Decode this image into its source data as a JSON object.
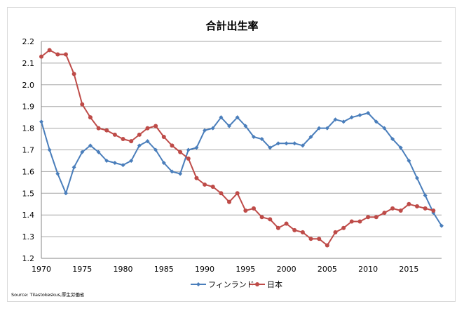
{
  "chart_data": {
    "type": "line",
    "title": "合計出生率",
    "xlabel": "",
    "ylabel": "",
    "xlim": [
      1970,
      2019
    ],
    "ylim": [
      1.2,
      2.2
    ],
    "x_ticks": [
      "1970",
      "1975",
      "1980",
      "1985",
      "1990",
      "1995",
      "2000",
      "2005",
      "2010",
      "2015"
    ],
    "y_ticks": [
      "1.2",
      "1.3",
      "1.4",
      "1.5",
      "1.6",
      "1.7",
      "1.8",
      "1.9",
      "2.0",
      "2.1",
      "2.2"
    ],
    "grid": true,
    "legend_position": "bottom",
    "series": [
      {
        "name": "フィンランド",
        "color": "#4a7ebb",
        "marker": "diamond",
        "x": [
          1970,
          1971,
          1972,
          1973,
          1974,
          1975,
          1976,
          1977,
          1978,
          1979,
          1980,
          1981,
          1982,
          1983,
          1984,
          1985,
          1986,
          1987,
          1988,
          1989,
          1990,
          1991,
          1992,
          1993,
          1994,
          1995,
          1996,
          1997,
          1998,
          1999,
          2000,
          2001,
          2002,
          2003,
          2004,
          2005,
          2006,
          2007,
          2008,
          2009,
          2010,
          2011,
          2012,
          2013,
          2014,
          2015,
          2016,
          2017,
          2018,
          2019
        ],
        "values": [
          1.83,
          1.7,
          1.59,
          1.5,
          1.62,
          1.69,
          1.72,
          1.69,
          1.65,
          1.64,
          1.63,
          1.65,
          1.72,
          1.74,
          1.7,
          1.64,
          1.6,
          1.59,
          1.7,
          1.71,
          1.79,
          1.8,
          1.85,
          1.81,
          1.85,
          1.81,
          1.76,
          1.75,
          1.71,
          1.73,
          1.73,
          1.73,
          1.72,
          1.76,
          1.8,
          1.8,
          1.84,
          1.83,
          1.85,
          1.86,
          1.87,
          1.83,
          1.8,
          1.75,
          1.71,
          1.65,
          1.57,
          1.49,
          1.41,
          1.35
        ]
      },
      {
        "name": "日本",
        "color": "#be4b48",
        "marker": "circle",
        "x": [
          1970,
          1971,
          1972,
          1973,
          1974,
          1975,
          1976,
          1977,
          1978,
          1979,
          1980,
          1981,
          1982,
          1983,
          1984,
          1985,
          1986,
          1987,
          1988,
          1989,
          1990,
          1991,
          1992,
          1993,
          1994,
          1995,
          1996,
          1997,
          1998,
          1999,
          2000,
          2001,
          2002,
          2003,
          2004,
          2005,
          2006,
          2007,
          2008,
          2009,
          2010,
          2011,
          2012,
          2013,
          2014,
          2015,
          2016,
          2017,
          2018
        ],
        "values": [
          2.13,
          2.16,
          2.14,
          2.14,
          2.05,
          1.91,
          1.85,
          1.8,
          1.79,
          1.77,
          1.75,
          1.74,
          1.77,
          1.8,
          1.81,
          1.76,
          1.72,
          1.69,
          1.66,
          1.57,
          1.54,
          1.53,
          1.5,
          1.46,
          1.5,
          1.42,
          1.43,
          1.39,
          1.38,
          1.34,
          1.36,
          1.33,
          1.32,
          1.29,
          1.29,
          1.26,
          1.32,
          1.34,
          1.37,
          1.37,
          1.39,
          1.39,
          1.41,
          1.43,
          1.42,
          1.45,
          1.44,
          1.43,
          1.42
        ]
      }
    ]
  },
  "source": "Source: Tilastokeskus,厚生労働省"
}
